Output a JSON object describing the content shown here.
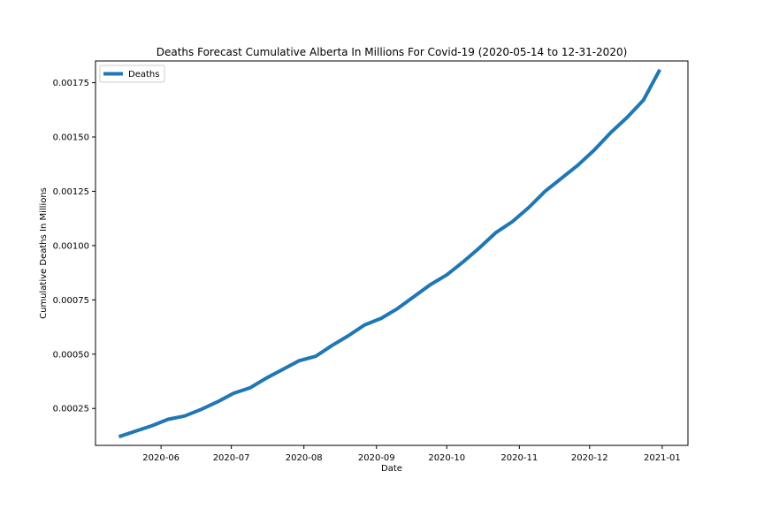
{
  "chart_data": {
    "type": "line",
    "title": "Deaths Forecast Cumulative Alberta In Millions For Covid-19 (2020-05-14 to 12-31-2020)",
    "xlabel": "Date",
    "ylabel": "Cumulative Deaths In Millions",
    "xlim": [
      "2020-05-04",
      "2021-01-12"
    ],
    "ylim": [
      8e-05,
      0.00185
    ],
    "x_ticks": [
      "2020-06-01",
      "2020-07-01",
      "2020-08-01",
      "2020-09-01",
      "2020-10-01",
      "2020-11-01",
      "2020-12-01",
      "2021-01-01"
    ],
    "x_tick_labels": [
      "2020-06",
      "2020-07",
      "2020-08",
      "2020-09",
      "2020-10",
      "2020-11",
      "2020-12",
      "2021-01"
    ],
    "y_ticks": [
      0.00025,
      0.0005,
      0.00075,
      0.001,
      0.00125,
      0.0015,
      0.00175
    ],
    "y_tick_labels": [
      "0.00025",
      "0.00050",
      "0.00075",
      "0.00100",
      "0.00125",
      "0.00150",
      "0.00175"
    ],
    "grid": false,
    "legend_position": "top-left",
    "series": [
      {
        "name": "Deaths",
        "color": "#1f77b4",
        "x": [
          "2020-05-14",
          "2020-05-21",
          "2020-05-28",
          "2020-06-04",
          "2020-06-11",
          "2020-06-18",
          "2020-06-25",
          "2020-07-02",
          "2020-07-09",
          "2020-07-16",
          "2020-07-23",
          "2020-07-30",
          "2020-08-06",
          "2020-08-13",
          "2020-08-20",
          "2020-08-27",
          "2020-09-03",
          "2020-09-10",
          "2020-09-17",
          "2020-09-24",
          "2020-10-01",
          "2020-10-08",
          "2020-10-15",
          "2020-10-22",
          "2020-10-29",
          "2020-11-05",
          "2020-11-12",
          "2020-11-19",
          "2020-11-26",
          "2020-12-03",
          "2020-12-10",
          "2020-12-17",
          "2020-12-24",
          "2020-12-31"
        ],
        "y": [
          0.00012,
          0.000145,
          0.00017,
          0.0002,
          0.000215,
          0.000245,
          0.00028,
          0.00032,
          0.000345,
          0.00039,
          0.00043,
          0.00047,
          0.00049,
          0.00054,
          0.000585,
          0.000635,
          0.000665,
          0.00071,
          0.000765,
          0.00082,
          0.000865,
          0.000925,
          0.00099,
          0.00106,
          0.00111,
          0.001175,
          0.00125,
          0.00131,
          0.00137,
          0.00144,
          0.00152,
          0.00159,
          0.00167,
          0.00181
        ]
      }
    ]
  }
}
